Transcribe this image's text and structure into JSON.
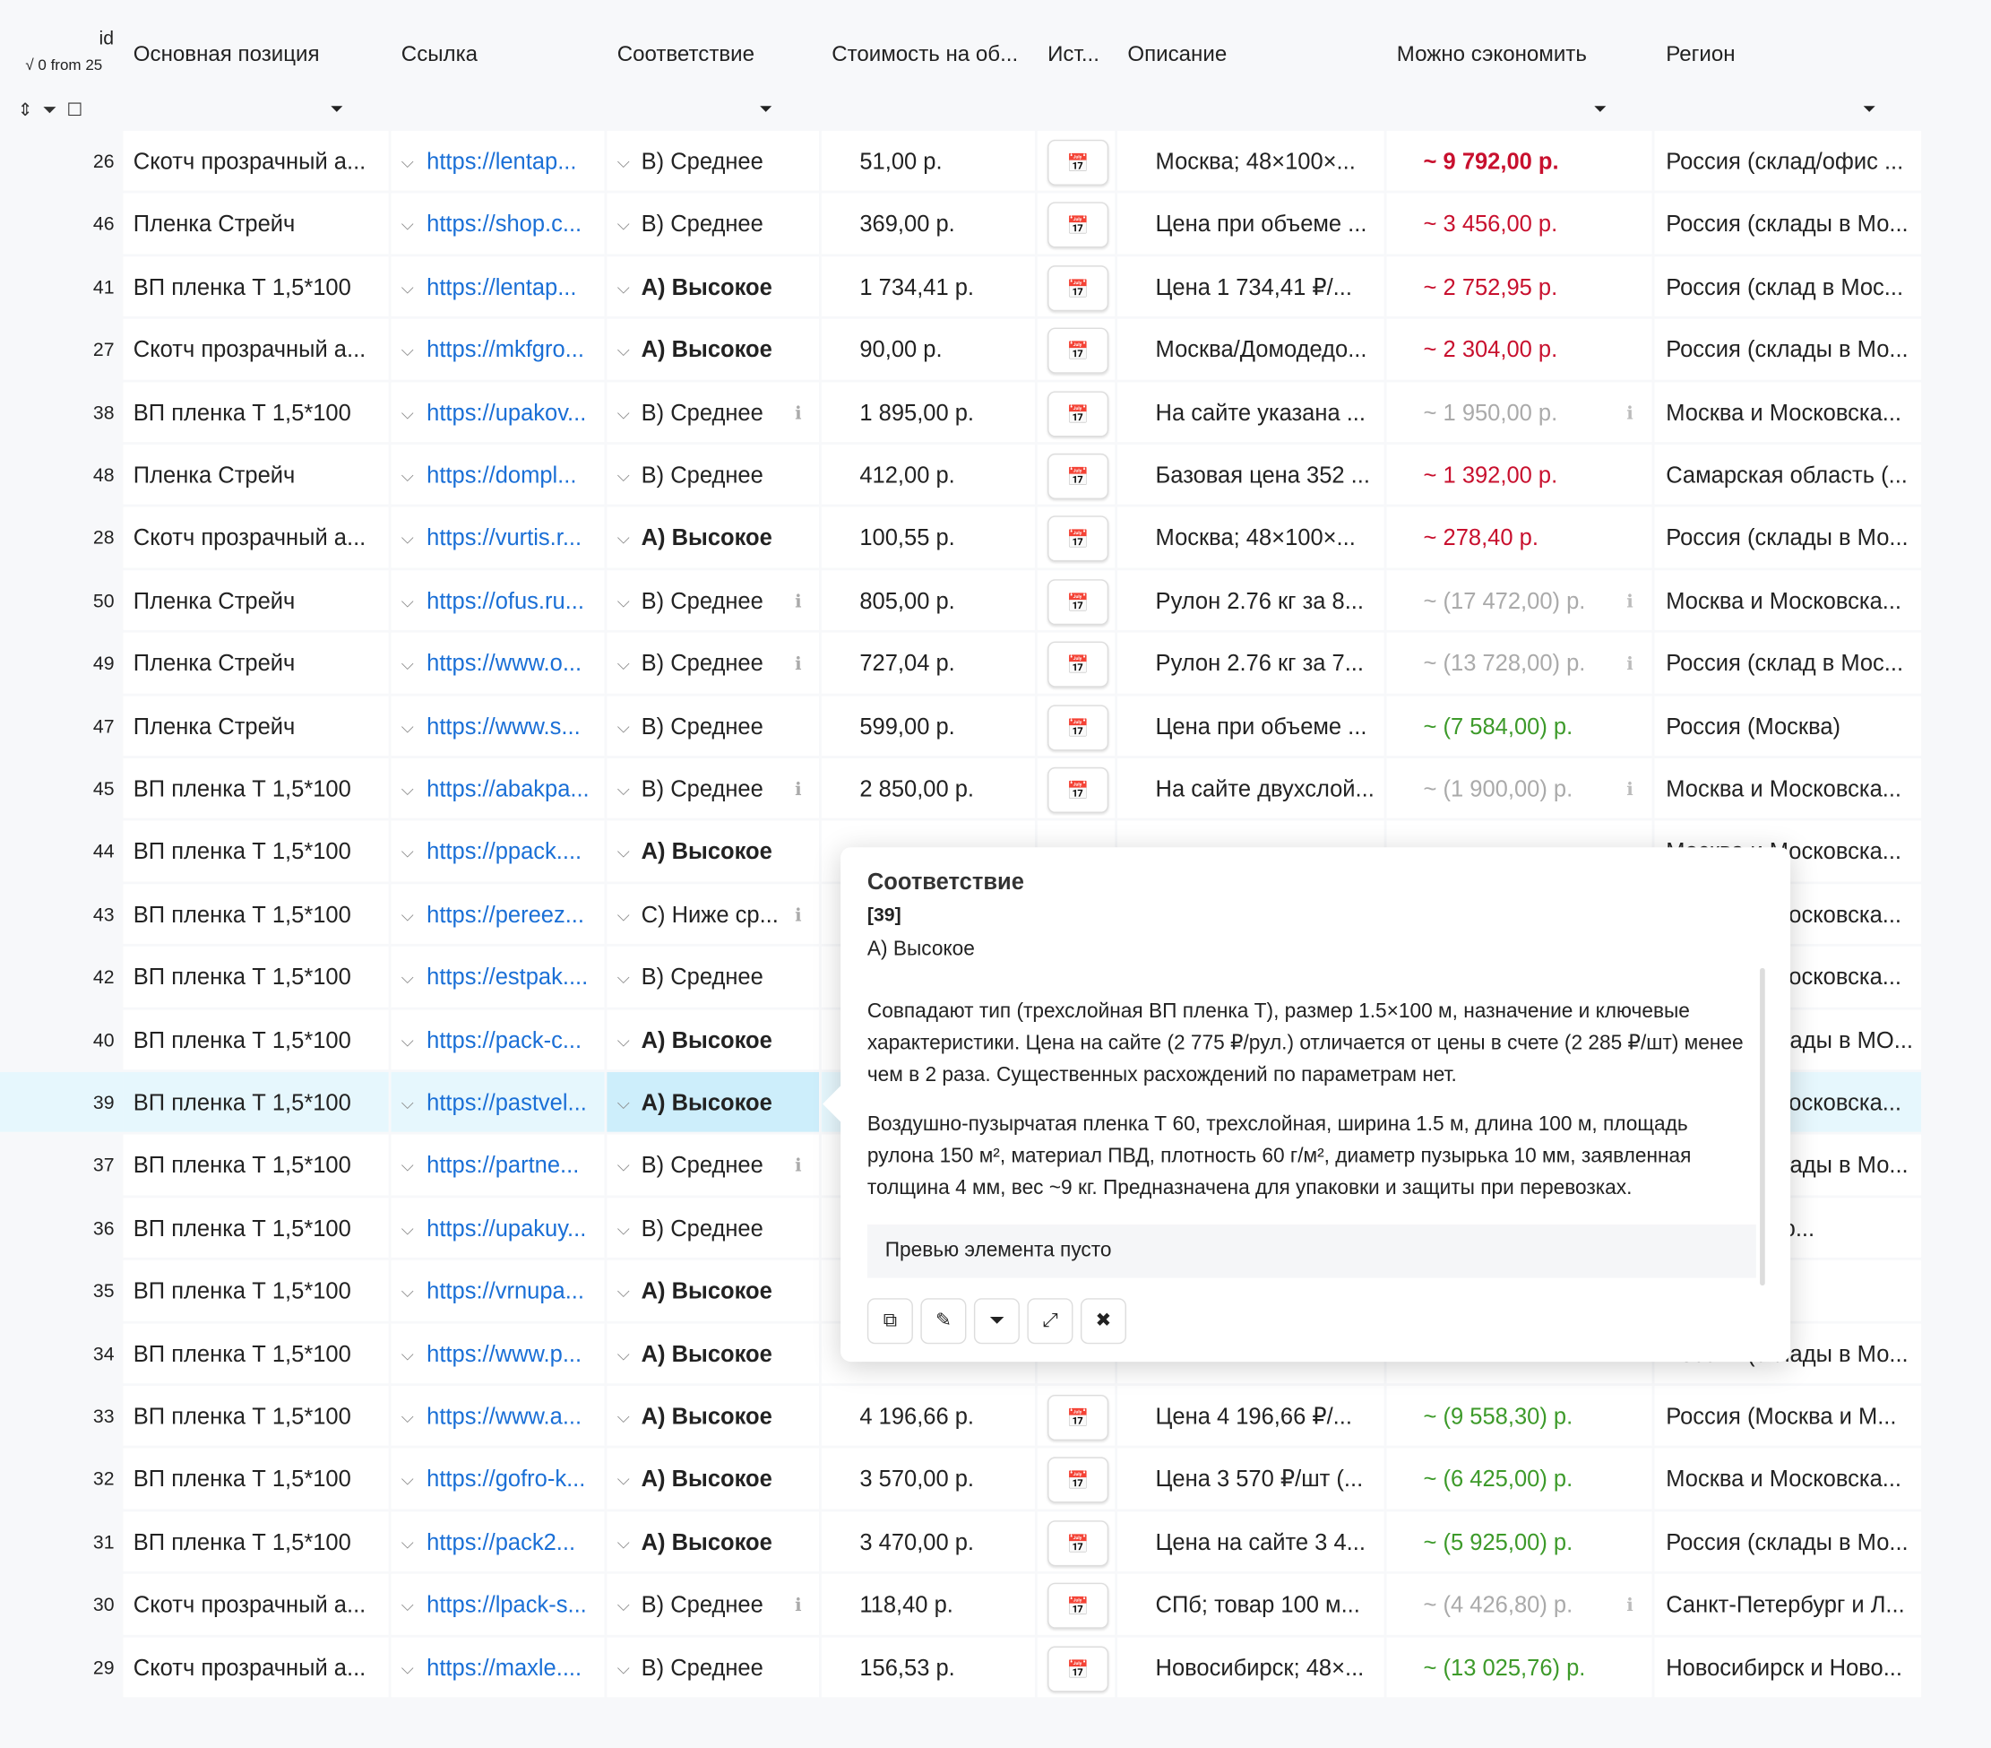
{
  "header": {
    "id": "id",
    "count": "√ 0 from 25",
    "columns": [
      "Основная позиция",
      "Ссылка",
      "Соответствие",
      "Стоимость на об...",
      "Ист...",
      "Описание",
      "Можно сэкономить",
      "Регион"
    ]
  },
  "table": {
    "selected": "39",
    "rows": [
      {
        "id": "26",
        "item": "Скотч прозрачный а...",
        "link": "https://lentap...",
        "match": "B) Среднее",
        "cost": "51,00 р.",
        "desc": "Москва; 48×100×...",
        "save": "~ 9 792,00 р.",
        "tone": "red",
        "strong_save": true,
        "region": "Россия (склад/офис ..."
      },
      {
        "id": "46",
        "item": "Пленка Стрейч",
        "link": "https://shop.c...",
        "match": "B) Среднее",
        "cost": "369,00 р.",
        "desc": "Цена при объеме ...",
        "save": "~ 3 456,00 р.",
        "tone": "red",
        "region": "Россия (склады в Мо..."
      },
      {
        "id": "41",
        "item": "ВП пленка Т 1,5*100",
        "link": "https://lentap...",
        "match": "А) Высокое",
        "strong_match": true,
        "cost": "1 734,41 р.",
        "desc": "Цена 1 734,41 ₽/...",
        "save": "~ 2 752,95 р.",
        "tone": "red",
        "region": "Россия (склад в Мос..."
      },
      {
        "id": "27",
        "item": "Скотч прозрачный а...",
        "link": "https://mkfgro...",
        "match": "А) Высокое",
        "strong_match": true,
        "cost": "90,00 р.",
        "desc": "Москва/Домодедо...",
        "save": "~ 2 304,00 р.",
        "tone": "red",
        "region": "Россия (склады в Мо..."
      },
      {
        "id": "38",
        "item": "ВП пленка Т 1,5*100",
        "link": "https://upakov...",
        "match": "B) Среднее",
        "match_info": true,
        "cost": "1 895,00 р.",
        "desc": "На сайте указана ...",
        "save": "~ 1 950,00 р.",
        "tone": "gray",
        "save_info": true,
        "region": "Москва и Московска..."
      },
      {
        "id": "48",
        "item": "Пленка Стрейч",
        "link": "https://dompl...",
        "match": "B) Среднее",
        "cost": "412,00 р.",
        "desc": "Базовая цена 352 ...",
        "save": "~ 1 392,00 р.",
        "tone": "red",
        "region": "Самарская область (..."
      },
      {
        "id": "28",
        "item": "Скотч прозрачный а...",
        "link": "https://vurtis.r...",
        "match": "А) Высокое",
        "strong_match": true,
        "cost": "100,55 р.",
        "desc": "Москва; 48×100×...",
        "save": "~ 278,40 р.",
        "tone": "red",
        "region": "Россия (склады в Мо..."
      },
      {
        "id": "50",
        "item": "Пленка Стрейч",
        "link": "https://ofus.ru...",
        "match": "B) Среднее",
        "match_info": true,
        "cost": "805,00 р.",
        "desc": "Рулон 2.76 кг за 8...",
        "save": "~ (17 472,00) р.",
        "tone": "gray",
        "save_info": true,
        "region": "Москва и Московска..."
      },
      {
        "id": "49",
        "item": "Пленка Стрейч",
        "link": "https://www.o...",
        "match": "B) Среднее",
        "match_info": true,
        "cost": "727,04 р.",
        "desc": "Рулон 2.76 кг за 7...",
        "save": "~ (13 728,00) р.",
        "tone": "gray",
        "save_info": true,
        "region": "Россия (склад в Мос..."
      },
      {
        "id": "47",
        "item": "Пленка Стрейч",
        "link": "https://www.s...",
        "match": "B) Среднее",
        "cost": "599,00 р.",
        "desc": "Цена при объеме ...",
        "save": "~ (7 584,00) р.",
        "tone": "green",
        "region": "Россия (Москва)"
      },
      {
        "id": "45",
        "item": "ВП пленка Т 1,5*100",
        "link": "https://abakpa...",
        "match": "B) Среднее",
        "match_info": true,
        "cost": "2 850,00 р.",
        "desc": "На сайте двухслой...",
        "save": "~ (1 900,00) р.",
        "tone": "gray",
        "save_info": true,
        "region": "Москва и Московска..."
      },
      {
        "id": "44",
        "item": "ВП пленка Т 1,5*100",
        "link": "https://ppack....",
        "match": "А) Высокое",
        "strong_match": true,
        "region": "Москва и Московска..."
      },
      {
        "id": "43",
        "item": "ВП пленка Т 1,5*100",
        "link": "https://pereez...",
        "match": "C) Ниже ср...",
        "match_info": true,
        "region": "Москва и Московска..."
      },
      {
        "id": "42",
        "item": "ВП пленка Т 1,5*100",
        "link": "https://estpak....",
        "match": "B) Среднее",
        "region": "Москва и Московска..."
      },
      {
        "id": "40",
        "item": "ВП пленка Т 1,5*100",
        "link": "https://pack-c...",
        "match": "А) Высокое",
        "strong_match": true,
        "region": "Россия (склады в МО..."
      },
      {
        "id": "39",
        "item": "ВП пленка Т 1,5*100",
        "link": "https://pastvel...",
        "match": "А) Высокое",
        "strong_match": true,
        "region": "Москва и Московска..."
      },
      {
        "id": "37",
        "item": "ВП пленка Т 1,5*100",
        "link": "https://partne...",
        "match": "B) Среднее",
        "match_info": true,
        "region": "Россия (склады в Мо..."
      },
      {
        "id": "36",
        "item": "ВП пленка Т 1,5*100",
        "link": "https://upakuy...",
        "match": "B) Среднее",
        "region": "Доставка по..."
      },
      {
        "id": "35",
        "item": "ВП пленка Т 1,5*100",
        "link": "https://vrnupa...",
        "match": "А) Высокое",
        "strong_match": true
      },
      {
        "id": "34",
        "item": "ВП пленка Т 1,5*100",
        "link": "https://www.p...",
        "match": "А) Высокое",
        "strong_match": true,
        "region": "Россия (склады в Мо..."
      },
      {
        "id": "33",
        "item": "ВП пленка Т 1,5*100",
        "link": "https://www.a...",
        "match": "А) Высокое",
        "strong_match": true,
        "cost": "4 196,66 р.",
        "desc": "Цена 4 196,66 ₽/...",
        "save": "~ (9 558,30) р.",
        "tone": "green",
        "region": "Россия (Москва и М..."
      },
      {
        "id": "32",
        "item": "ВП пленка Т 1,5*100",
        "link": "https://gofro-k...",
        "match": "А) Высокое",
        "strong_match": true,
        "cost": "3 570,00 р.",
        "desc": "Цена 3 570 ₽/шт (...",
        "save": "~ (6 425,00) р.",
        "tone": "green",
        "region": "Москва и Московска..."
      },
      {
        "id": "31",
        "item": "ВП пленка Т 1,5*100",
        "link": "https://pack2...",
        "match": "А) Высокое",
        "strong_match": true,
        "cost": "3 470,00 р.",
        "desc": "Цена на сайте 3 4...",
        "save": "~ (5 925,00) р.",
        "tone": "green",
        "region": "Россия (склады в Мо..."
      },
      {
        "id": "30",
        "item": "Скотч прозрачный а...",
        "link": "https://lpack-s...",
        "match": "B) Среднее",
        "match_info": true,
        "cost": "118,40 р.",
        "desc": "СПб; товар 100 м...",
        "save": "~ (4 426,80) р.",
        "tone": "gray",
        "save_info": true,
        "region": "Санкт-Петербург и Л..."
      },
      {
        "id": "29",
        "item": "Скотч прозрачный а...",
        "link": "https://maxle....",
        "match": "B) Среднее",
        "cost": "156,53 р.",
        "desc": "Новосибирск; 48×...",
        "save": "~ (13 025,76) р.",
        "tone": "green",
        "region": "Новосибирск и Ново..."
      }
    ]
  },
  "popup": {
    "title": "Соответствие",
    "ref": "[39]",
    "value": "А) Высокое",
    "paragraphs": [
      "Совпадают тип (трехслойная ВП пленка Т), размер 1.5×100 м, назначение и ключевые характеристики. Цена на сайте (2 775 ₽/рул.) отличается от цены в счете (2 285 ₽/шт) менее чем в 2 раза. Существенных расхождений по параметрам нет.",
      "Воздушно-пузырчатая пленка Т 60, трехслойная, ширина 1.5 м, длина 100 м, площадь рулона 150 м², материал ПВД, плотность 60 г/м², диаметр пузырька 10 мм, заявленная толщина 4 мм, вес ~9 кг. Предназначена для упаковки и защиты при перевозках."
    ],
    "preview": "Превью элемента пусто"
  }
}
